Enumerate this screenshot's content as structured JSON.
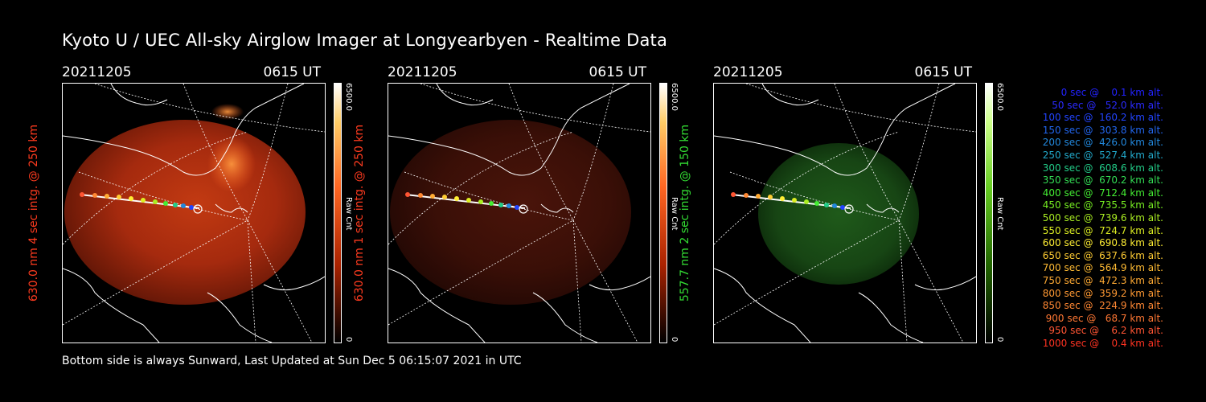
{
  "header": {
    "title": "Kyoto U / UEC All-sky Airglow Imager at Longyearbyen - Realtime Data"
  },
  "footer": {
    "text": "Bottom side is always Sunward, Last Updated at Sun Dec  5 06:15:07 2021 in UTC"
  },
  "colors": {
    "red_label": "#ff3b1f",
    "green_label": "#33dd33"
  },
  "panels": [
    {
      "date": "20211205",
      "time": "0615 UT",
      "side_label": "630.0 nm 4 sec intg. @ 250 km",
      "label_color": "#ff3b1f",
      "colorbar": {
        "max": "6500.0",
        "unit": "Raw Cnt",
        "min": "0"
      },
      "palette": "red",
      "brightness": 1.0
    },
    {
      "date": "20211205",
      "time": "0615 UT",
      "side_label": "630.0 nm 1 sec intg. @ 250 km",
      "label_color": "#ff3b1f",
      "colorbar": {
        "max": "6500.0",
        "unit": "Raw Cnt",
        "min": "0"
      },
      "palette": "red",
      "brightness": 0.35
    },
    {
      "date": "20211205",
      "time": "0615 UT",
      "side_label": "557.7 nm 2 sec intg. @ 150 km",
      "label_color": "#33dd33",
      "colorbar": {
        "max": "6500.0",
        "unit": "Raw Cnt",
        "min": "0"
      },
      "palette": "green",
      "brightness": 0.45
    }
  ],
  "legend": [
    {
      "text": "   0 sec @    0.1 km alt.",
      "color": "#2222ff"
    },
    {
      "text": "  50 sec @   52.0 km alt.",
      "color": "#2a2aff"
    },
    {
      "text": " 100 sec @  160.2 km alt.",
      "color": "#2244ff"
    },
    {
      "text": " 150 sec @  303.8 km alt.",
      "color": "#2266ee"
    },
    {
      "text": " 200 sec @  426.0 km alt.",
      "color": "#2288dd"
    },
    {
      "text": " 250 sec @  527.4 km alt.",
      "color": "#22aacc"
    },
    {
      "text": " 300 sec @  608.6 km alt.",
      "color": "#22cc88"
    },
    {
      "text": " 350 sec @  670.2 km alt.",
      "color": "#33dd55"
    },
    {
      "text": " 400 sec @  712.4 km alt.",
      "color": "#44ee33"
    },
    {
      "text": " 450 sec @  735.5 km alt.",
      "color": "#77ee22"
    },
    {
      "text": " 500 sec @  739.6 km alt.",
      "color": "#aaee22"
    },
    {
      "text": " 550 sec @  724.7 km alt.",
      "color": "#ddee22"
    },
    {
      "text": " 600 sec @  690.8 km alt.",
      "color": "#ffee33"
    },
    {
      "text": " 650 sec @  637.6 km alt.",
      "color": "#ffcc33"
    },
    {
      "text": " 700 sec @  564.9 km alt.",
      "color": "#ffbb33"
    },
    {
      "text": " 750 sec @  472.3 km alt.",
      "color": "#ffaa33"
    },
    {
      "text": " 800 sec @  359.2 km alt.",
      "color": "#ff9933"
    },
    {
      "text": " 850 sec @  224.9 km alt.",
      "color": "#ff8833"
    },
    {
      "text": " 900 sec @   68.7 km alt.",
      "color": "#ff7733"
    },
    {
      "text": " 950 sec @    6.2 km alt.",
      "color": "#ff5533"
    },
    {
      "text": "1000 sec @    0.4 km alt.",
      "color": "#ff3322"
    }
  ]
}
